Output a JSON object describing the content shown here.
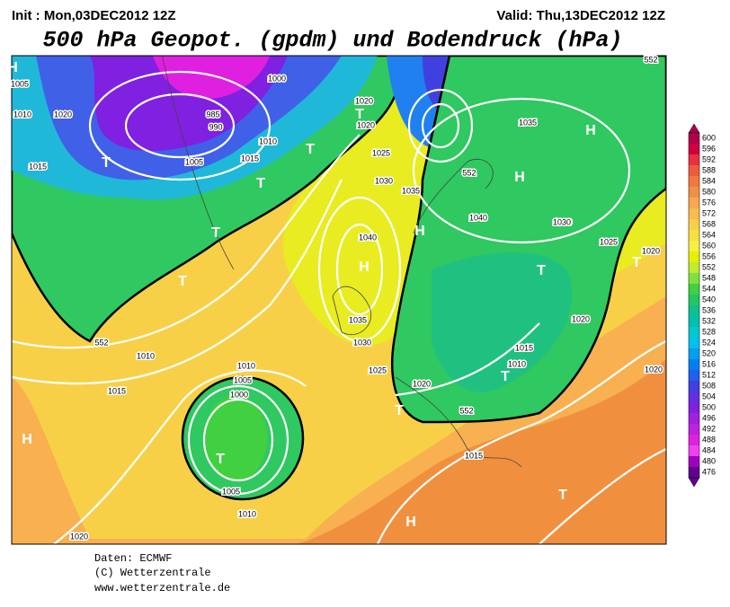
{
  "header": {
    "init": "Init : Mon,03DEC2012 12Z",
    "valid": "Valid: Thu,13DEC2012 12Z",
    "title": "500 hPa Geopot. (gpdm) und Bodendruck (hPa)"
  },
  "legend": {
    "ticks": [
      600,
      596,
      592,
      588,
      584,
      580,
      576,
      572,
      568,
      564,
      560,
      556,
      552,
      548,
      544,
      540,
      536,
      532,
      528,
      524,
      520,
      516,
      512,
      508,
      504,
      500,
      496,
      492,
      488,
      484,
      480,
      476
    ],
    "colors": [
      "#b0004a",
      "#d00040",
      "#e83040",
      "#f05a3c",
      "#f07840",
      "#f09048",
      "#f8a850",
      "#f8bc50",
      "#f8d048",
      "#f8e040",
      "#f8f040",
      "#e8f000",
      "#c0ec30",
      "#80e040",
      "#40d040",
      "#20c860",
      "#10c090",
      "#00c0b0",
      "#00c8d0",
      "#00c0f0",
      "#00a0f0",
      "#0080f0",
      "#2060f0",
      "#4040e0",
      "#6030e0",
      "#8020e0",
      "#a020e0",
      "#c020e0",
      "#e020e0",
      "#f040f0",
      "#a000c0",
      "#600090"
    ]
  },
  "map": {
    "labels": [
      "H",
      "T",
      "T",
      "T",
      "T",
      "T",
      "H",
      "H",
      "H",
      "T",
      "H",
      "T",
      "T",
      "T",
      "H",
      "T",
      "H",
      "T",
      "T",
      "1020",
      "1010",
      "1015",
      "1005",
      "1000",
      "995",
      "985",
      "990",
      "1005",
      "1010",
      "1015",
      "1020",
      "1035",
      "1040",
      "1030",
      "1025",
      "1030",
      "1035",
      "1040",
      "1035",
      "1030",
      "1025",
      "1020",
      "1010",
      "1015",
      "1005",
      "1000",
      "1005",
      "1010",
      "1020",
      "1015",
      "1010",
      "1020",
      "1030",
      "1025",
      "1020",
      "1020",
      "552",
      "552",
      "552",
      "552",
      "1010",
      "1015",
      "1020"
    ]
  },
  "footer": {
    "line1": "Daten: ECMWF",
    "line2": "(C) Wetterzentrale",
    "line3": "www.wetterzentrale.de"
  }
}
